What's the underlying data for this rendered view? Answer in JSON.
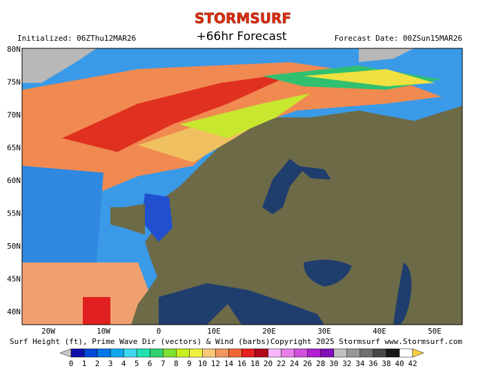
{
  "header": {
    "logo": "STORMSURF",
    "title": "+66hr Forecast",
    "initialized": "Initialized: 06ZThu12MAR26",
    "forecast_date": "Forecast Date: 00ZSun15MAR26"
  },
  "map": {
    "lat_labels": [
      "80N",
      "75N",
      "70N",
      "65N",
      "60N",
      "55N",
      "50N",
      "45N",
      "40N"
    ],
    "lon_labels": [
      "20W",
      "10W",
      "0",
      "10E",
      "20E",
      "30E",
      "40E",
      "50E"
    ]
  },
  "footer": {
    "caption": "Surf Height (ft), Prime Wave Dir (vectors) & Wind (barbs)",
    "copyright": "Copyright 2025 Stormsurf www.Stormsurf.com"
  },
  "colorbar": {
    "labels": [
      0,
      1,
      2,
      3,
      4,
      5,
      6,
      7,
      8,
      9,
      10,
      12,
      14,
      16,
      18,
      20,
      22,
      24,
      26,
      28,
      30,
      32,
      34,
      36,
      38,
      40,
      42
    ],
    "colors": [
      "#1010a8",
      "#0048d8",
      "#0078e8",
      "#10a8f0",
      "#40d8f0",
      "#20e0b0",
      "#30d070",
      "#80e030",
      "#c8f020",
      "#f0f040",
      "#f8c878",
      "#f09860",
      "#f06830",
      "#e82020",
      "#b00818",
      "#f8b8f8",
      "#e880e8",
      "#d050e0",
      "#b020d0",
      "#8010b8",
      "#c0c0c0",
      "#989898",
      "#707070",
      "#484848",
      "#181818",
      "#ffffff"
    ],
    "low_color": "#c8c8c8",
    "high_color": "#f8d040"
  }
}
